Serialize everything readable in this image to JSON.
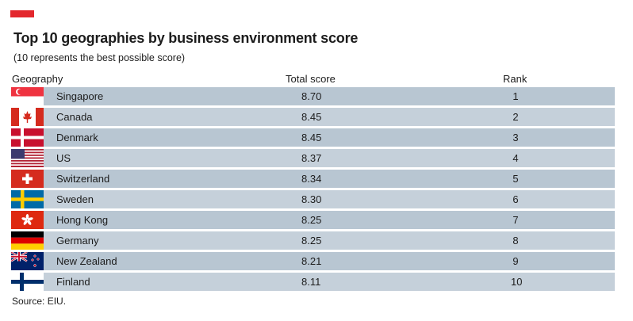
{
  "header": {
    "title": "Top 10 geographies by business environment score",
    "subtitle": "(10 represents the best possible score)",
    "accent_color": "#e3272d"
  },
  "columns": {
    "geography": "Geography",
    "score": "Total score",
    "rank": "Rank"
  },
  "chart_data": {
    "type": "table",
    "title": "Top 10 geographies by business environment score",
    "subtitle": "(10 represents the best possible score)",
    "columns": [
      "Geography",
      "Total score",
      "Rank"
    ],
    "rows": [
      {
        "geography": "Singapore",
        "score": "8.70",
        "rank": "1",
        "flag": "singapore-flag-icon"
      },
      {
        "geography": "Canada",
        "score": "8.45",
        "rank": "2",
        "flag": "canada-flag-icon"
      },
      {
        "geography": "Denmark",
        "score": "8.45",
        "rank": "3",
        "flag": "denmark-flag-icon"
      },
      {
        "geography": "US",
        "score": "8.37",
        "rank": "4",
        "flag": "us-flag-icon"
      },
      {
        "geography": "Switzerland",
        "score": "8.34",
        "rank": "5",
        "flag": "switzerland-flag-icon"
      },
      {
        "geography": "Sweden",
        "score": "8.30",
        "rank": "6",
        "flag": "sweden-flag-icon"
      },
      {
        "geography": "Hong Kong",
        "score": "8.25",
        "rank": "7",
        "flag": "hong-kong-flag-icon"
      },
      {
        "geography": "Germany",
        "score": "8.25",
        "rank": "8",
        "flag": "germany-flag-icon"
      },
      {
        "geography": "New Zealand",
        "score": "8.21",
        "rank": "9",
        "flag": "new-zealand-flag-icon"
      },
      {
        "geography": "Finland",
        "score": "8.11",
        "rank": "10",
        "flag": "finland-flag-icon"
      }
    ]
  },
  "footer": {
    "source": "Source: EIU."
  }
}
